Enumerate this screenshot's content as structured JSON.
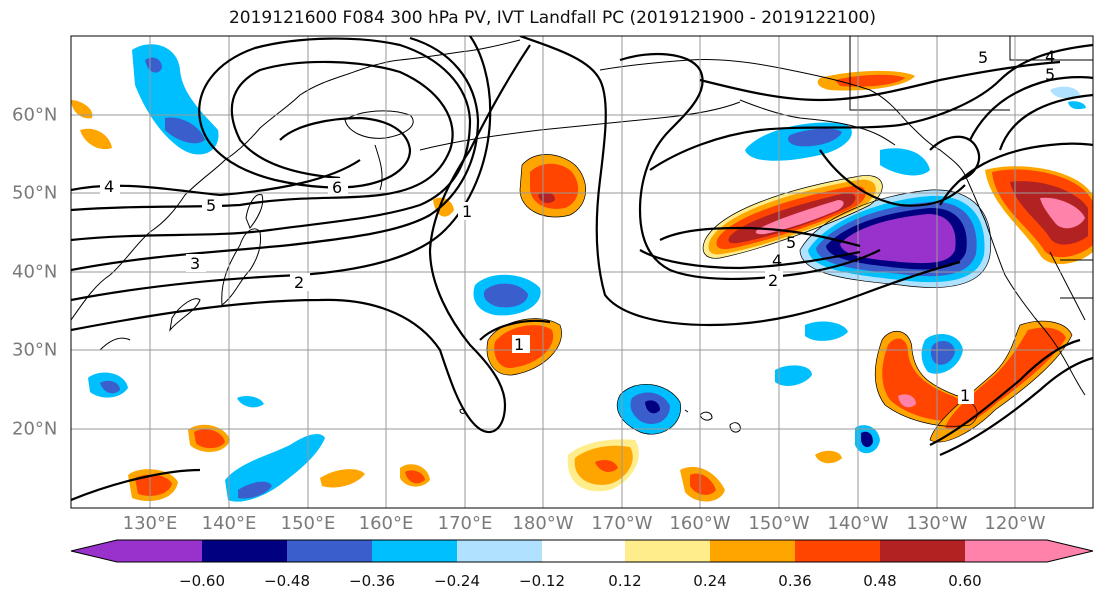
{
  "title": "2019121600 F084 300 hPa PV, IVT Landfall PC (2019121900 - 2019122100)",
  "map": {
    "longitude_labels": [
      "130°E",
      "140°E",
      "150°E",
      "160°E",
      "170°E",
      "180°W",
      "170°W",
      "160°W",
      "150°W",
      "140°W",
      "130°W",
      "120°W"
    ],
    "latitude_labels": [
      "60°N",
      "50°N",
      "40°N",
      "30°N",
      "20°N"
    ],
    "contour_labels": [
      "4",
      "5",
      "6",
      "5",
      "3",
      "2",
      "1",
      "1",
      "2",
      "4",
      "5",
      "4",
      "5",
      "1"
    ],
    "gridlines": true,
    "coastlines": true
  },
  "colorbar": {
    "tick_labels": [
      "−0.60",
      "−0.48",
      "−0.36",
      "−0.24",
      "−0.12",
      "0.12",
      "0.24",
      "0.36",
      "0.48",
      "0.60"
    ],
    "colors": [
      "#9932cc",
      "#000080",
      "#3a5fcd",
      "#00bfff",
      "#b0e2ff",
      "#ffffff",
      "#ffec8b",
      "#ffa500",
      "#ff4500",
      "#b22222",
      "#ff82ab"
    ],
    "extend": "both"
  }
}
